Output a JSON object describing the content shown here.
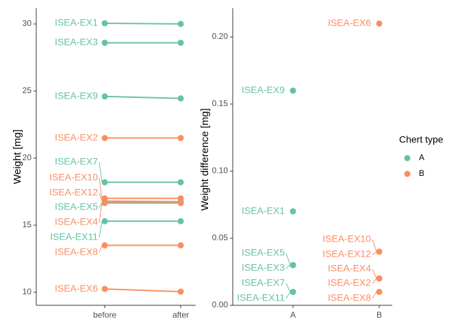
{
  "colors": {
    "A": "#66c2a5",
    "B": "#fc8d62",
    "axis": "#333333",
    "text": "#000000"
  },
  "legend": {
    "title": "Chert type",
    "placement": "right",
    "entries": [
      {
        "key": "A",
        "label": "A"
      },
      {
        "key": "B",
        "label": "B"
      }
    ]
  },
  "chart_data": [
    {
      "type": "line",
      "subtype": "slopegraph",
      "ylabel": "Weight [mg]",
      "xlabel": "",
      "categories": [
        "before",
        "after"
      ],
      "ylim": [
        9.2,
        31.0
      ],
      "yticks": [
        10,
        15,
        20,
        25,
        30
      ],
      "grid": false,
      "series": [
        {
          "name": "ISEA-EX1",
          "group": "A",
          "values": [
            30.05,
            30.0
          ]
        },
        {
          "name": "ISEA-EX3",
          "group": "A",
          "values": [
            28.6,
            28.6
          ]
        },
        {
          "name": "ISEA-EX9",
          "group": "A",
          "values": [
            24.6,
            24.45
          ]
        },
        {
          "name": "ISEA-EX2",
          "group": "B",
          "values": [
            21.5,
            21.5
          ]
        },
        {
          "name": "ISEA-EX7",
          "group": "A",
          "values": [
            18.2,
            18.2
          ]
        },
        {
          "name": "ISEA-EX10",
          "group": "B",
          "values": [
            17.0,
            17.0
          ]
        },
        {
          "name": "ISEA-EX12",
          "group": "B",
          "values": [
            16.8,
            16.75
          ]
        },
        {
          "name": "ISEA-EX5",
          "group": "A",
          "values": [
            16.7,
            16.7
          ]
        },
        {
          "name": "ISEA-EX4",
          "group": "B",
          "values": [
            16.65,
            16.65
          ]
        },
        {
          "name": "ISEA-EX11",
          "group": "A",
          "values": [
            15.3,
            15.3
          ]
        },
        {
          "name": "ISEA-EX8",
          "group": "B",
          "values": [
            13.5,
            13.5
          ]
        },
        {
          "name": "ISEA-EX6",
          "group": "B",
          "values": [
            10.25,
            10.05
          ]
        }
      ]
    },
    {
      "type": "scatter",
      "ylabel": "Weight difference [mg]",
      "xlabel": "",
      "categories": [
        "A",
        "B"
      ],
      "ylim": [
        0,
        0.22
      ],
      "yticks": [
        0.0,
        0.05,
        0.1,
        0.15,
        0.2
      ],
      "ytick_labels": [
        "0.00",
        "0.05",
        "0.10",
        "0.15",
        "0.20"
      ],
      "grid": false,
      "points": [
        {
          "name": "ISEA-EX6",
          "group": "B",
          "y": 0.21
        },
        {
          "name": "ISEA-EX9",
          "group": "A",
          "y": 0.16
        },
        {
          "name": "ISEA-EX1",
          "group": "A",
          "y": 0.07
        },
        {
          "name": "ISEA-EX5",
          "group": "A",
          "y": 0.03
        },
        {
          "name": "ISEA-EX3",
          "group": "A",
          "y": 0.03
        },
        {
          "name": "ISEA-EX7",
          "group": "A",
          "y": 0.01
        },
        {
          "name": "ISEA-EX11",
          "group": "A",
          "y": 0.01
        },
        {
          "name": "ISEA-EX10",
          "group": "B",
          "y": 0.04
        },
        {
          "name": "ISEA-EX12",
          "group": "B",
          "y": 0.04
        },
        {
          "name": "ISEA-EX4",
          "group": "B",
          "y": 0.02
        },
        {
          "name": "ISEA-EX2",
          "group": "B",
          "y": 0.02
        },
        {
          "name": "ISEA-EX8",
          "group": "B",
          "y": 0.01
        }
      ]
    }
  ]
}
